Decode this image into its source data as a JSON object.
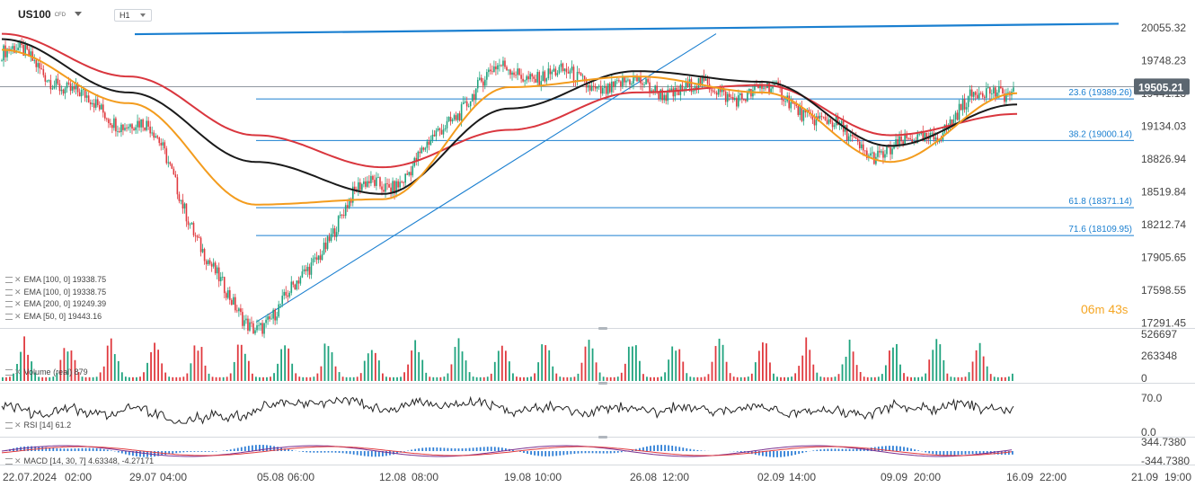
{
  "header": {
    "symbol": "US100",
    "symbol_tag": "CFD",
    "timeframe": "H1"
  },
  "price_axis": {
    "labels": [
      "20055.32",
      "19748.23",
      "19441.13",
      "19134.03",
      "18826.94",
      "18519.84",
      "18212.74",
      "17905.65",
      "17598.55",
      "17291.45"
    ],
    "current_price": "19505.21",
    "current_price_color": "#5b6670"
  },
  "countdown": {
    "minutes": "06",
    "minutes_unit": "m",
    "seconds": "43",
    "seconds_unit": "s"
  },
  "time_axis": {
    "labels": [
      "22.07.2024",
      "02:00",
      "29.07",
      "04:00",
      "05.08",
      "06:00",
      "12.08",
      "08:00",
      "19.08",
      "10:00",
      "26.08",
      "12:00",
      "02.09",
      "14:00",
      "09.09",
      "20:00",
      "16.09",
      "22:00",
      "21.09",
      "19:00"
    ]
  },
  "fibonacci": {
    "levels": [
      {
        "label": "23.6 (19389.26)",
        "price": 19389.26
      },
      {
        "label": "38.2 (19000.14)",
        "price": 19000.14
      },
      {
        "label": "61.8 (18371.14)",
        "price": 18371.14
      },
      {
        "label": "71.6 (18109.95)",
        "price": 18109.95
      }
    ],
    "color": "#1a7fd0"
  },
  "legend": [
    {
      "text": "EMA [100, 0] 19338.75"
    },
    {
      "text": "EMA [100, 0] 19338.75"
    },
    {
      "text": "EMA [200, 0] 19249.39"
    },
    {
      "text": "EMA [50, 0] 19443.16"
    }
  ],
  "volume": {
    "label": "Volume (real) 879",
    "axis_labels": [
      "526697",
      "263348",
      "0"
    ],
    "max": 526697
  },
  "rsi": {
    "label": "RSI [14] 61.2",
    "axis_labels": [
      "70.0",
      "0.0"
    ]
  },
  "macd": {
    "label": "MACD [14, 30, 7] 4.63348, -4.27171",
    "axis_labels": [
      "344.7380",
      "-344.7380"
    ]
  },
  "colors": {
    "bull": "#1fa37e",
    "bear": "#e0393e",
    "ema100": "#1a1a1a",
    "ema200": "#d9363e",
    "ema50": "#f39c1e",
    "trendline": "#1a7fd0",
    "resistance": "#1a7fd0",
    "macd_hist": "#2f7fd6"
  },
  "chart_data": {
    "type": "line",
    "title": "US100 H1",
    "xlabel": "",
    "ylabel": "",
    "ylim": [
      17291.45,
      20200
    ],
    "x": [
      "22.07.2024",
      "29.07",
      "05.08",
      "12.08",
      "19.08",
      "26.08",
      "02.09",
      "09.09",
      "16.09"
    ],
    "series": [
      {
        "name": "US100",
        "values": [
          19820,
          19200,
          17300,
          18600,
          19650,
          19500,
          19450,
          18900,
          19505
        ]
      },
      {
        "name": "EMA [100, 0]",
        "values": [
          19950,
          19450,
          18800,
          18500,
          19300,
          19650,
          19550,
          18950,
          19338
        ]
      },
      {
        "name": "EMA [200, 0]",
        "values": [
          20000,
          19600,
          19050,
          18750,
          19100,
          19450,
          19520,
          19050,
          19249
        ]
      },
      {
        "name": "EMA [50, 0]",
        "values": [
          19850,
          19350,
          18400,
          18450,
          19500,
          19600,
          19450,
          18800,
          19443
        ]
      }
    ],
    "trendlines": [
      {
        "name": "resistance",
        "from": [
          "22.07.2024",
          19996
        ],
        "to": [
          "16.09",
          20060
        ]
      },
      {
        "name": "support",
        "from": [
          "05.08",
          17300
        ],
        "to": [
          "26.08",
          20000
        ]
      }
    ],
    "fib_levels": [
      19389.26,
      19000.14,
      18371.14,
      18109.95
    ],
    "last_price": 19505.21,
    "grid": false,
    "legend": "bottom-left"
  }
}
